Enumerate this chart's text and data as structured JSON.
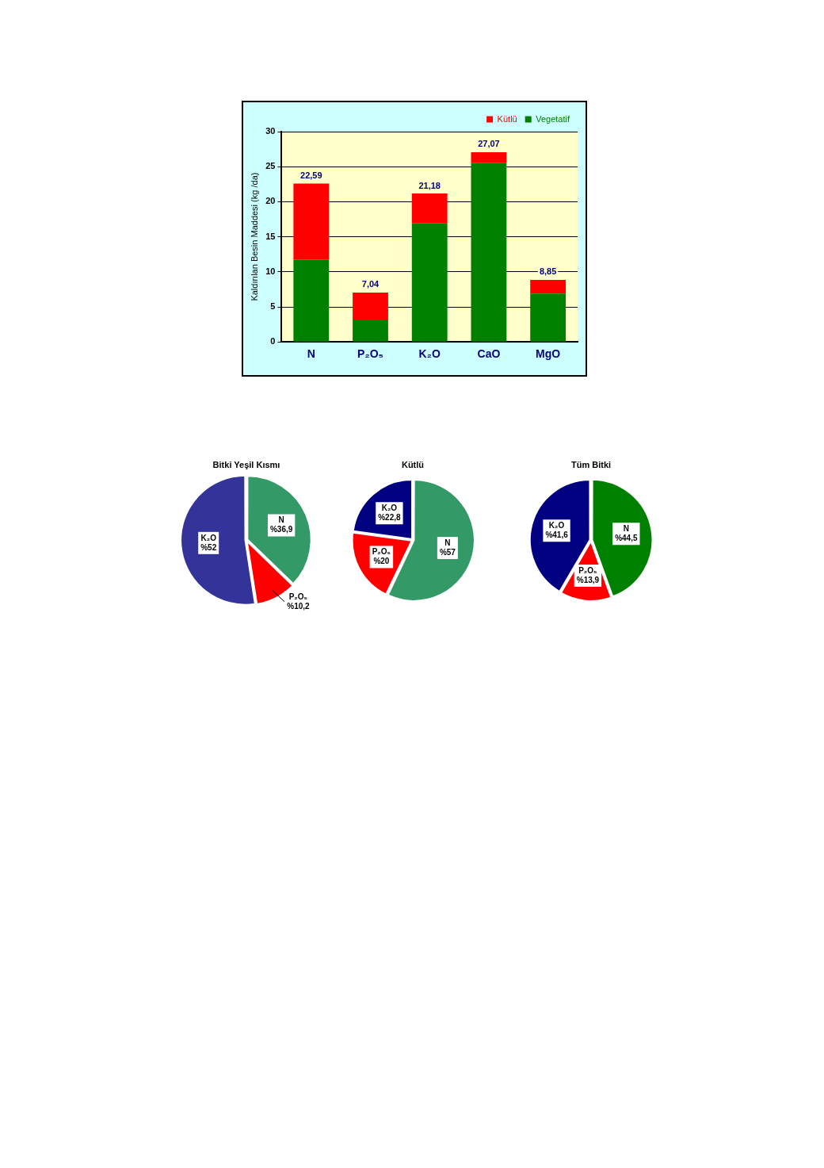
{
  "chart_data": [
    {
      "type": "bar",
      "stacked": true,
      "ylabel": "Kaldırılan Besin Maddesi (kg /da)",
      "categories": [
        "N",
        "P₂O₅",
        "K₂O",
        "CaO",
        "MgO"
      ],
      "series": [
        {
          "name": "Vegetatif",
          "color": "#008000",
          "values": [
            11.7,
            3.2,
            16.9,
            25.5,
            6.9
          ]
        },
        {
          "name": "Kütlü",
          "color": "#ff0000",
          "values": [
            10.89,
            3.84,
            4.28,
            1.57,
            1.95
          ]
        }
      ],
      "totals": [
        "22,59",
        "7,04",
        "21,18",
        "27,07",
        "8,85"
      ],
      "ylim": [
        0,
        30
      ],
      "yticks": [
        0,
        5,
        10,
        15,
        20,
        25,
        30
      ],
      "grid": "y",
      "legend": "top right"
    },
    {
      "type": "pie",
      "title": "Bitki Yeşil Kısmı",
      "categories": [
        "N",
        "P₂O₅",
        "K₂O"
      ],
      "values": [
        36.9,
        10.2,
        52
      ],
      "colors": [
        "#339966",
        "#ff0000",
        "#333399"
      ],
      "value_labels": [
        "%36,9",
        "%10,2",
        "%52"
      ]
    },
    {
      "type": "pie",
      "title": "Kütlü",
      "categories": [
        "N",
        "P₂O₅",
        "K₂O"
      ],
      "values": [
        57,
        20,
        22.8
      ],
      "colors": [
        "#339966",
        "#ff0000",
        "#000080"
      ],
      "value_labels": [
        "%57",
        "%20",
        "%22,8"
      ]
    },
    {
      "type": "pie",
      "title": "Tüm Bitki",
      "categories": [
        "N",
        "P₂O₅",
        "K₂O"
      ],
      "values": [
        44.5,
        13.9,
        41.6
      ],
      "colors": [
        "#008000",
        "#ff0000",
        "#000080"
      ],
      "value_labels": [
        "%44,5",
        "%13,9",
        "%41,6"
      ]
    }
  ]
}
